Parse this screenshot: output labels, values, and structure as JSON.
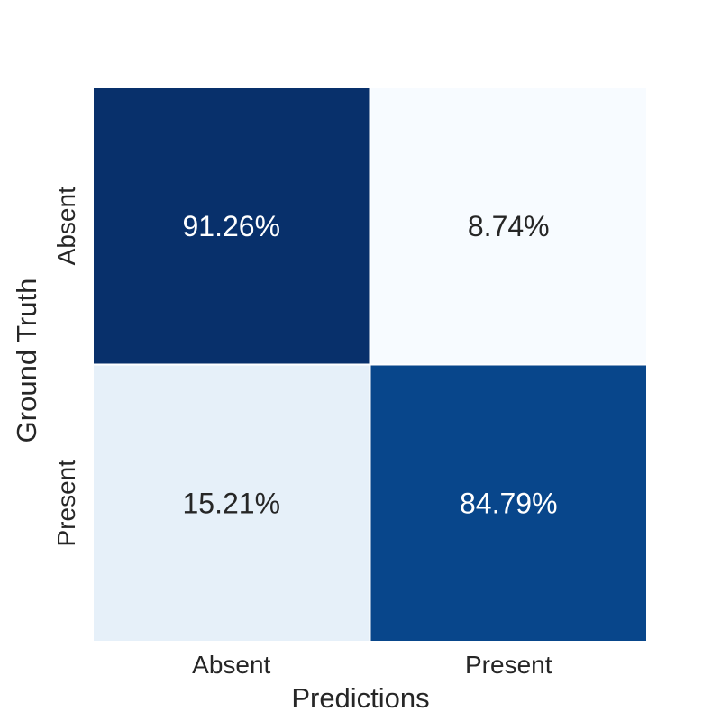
{
  "chart_data": {
    "type": "heatmap",
    "title": "",
    "xlabel": "Predictions",
    "ylabel": "Ground Truth",
    "x_categories": [
      "Absent",
      "Present"
    ],
    "y_categories": [
      "Absent",
      "Present"
    ],
    "values": [
      [
        91.26,
        8.74
      ],
      [
        15.21,
        84.79
      ]
    ],
    "value_labels": [
      [
        "91.26%",
        "8.74%"
      ],
      [
        "15.21%",
        "84.79%"
      ]
    ],
    "value_unit": "%",
    "colormap": "Blues",
    "colorbar": false,
    "cell_colors": [
      [
        "#08306b",
        "#f7fbff"
      ],
      [
        "#e6f0f9",
        "#08468b"
      ]
    ],
    "text_colors": [
      [
        "#ffffff",
        "#262626"
      ],
      [
        "#262626",
        "#ffffff"
      ]
    ]
  }
}
